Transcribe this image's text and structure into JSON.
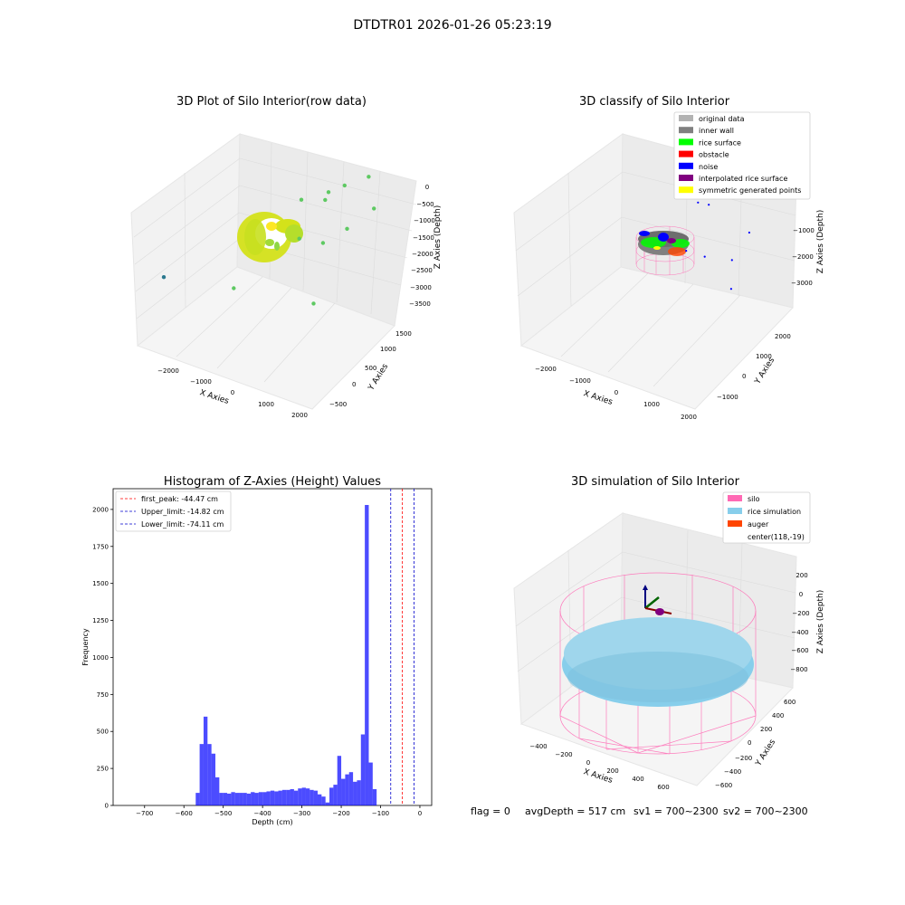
{
  "suptitle": "DTDTR01 2026-01-26 05:23:19",
  "footer": {
    "flag": "flag = 0",
    "avg": "avgDepth = 517 cm",
    "sv1": "sv1 = 700~2300",
    "sv2": "sv2 = 700~2300"
  },
  "chart_data": [
    {
      "id": "raw",
      "type": "scatter",
      "title": "3D Plot of Silo Interior(row data)",
      "xlabel": "X Axies",
      "ylabel": "Y Axies",
      "zlabel": "Z Axies (Depth)",
      "xticks": [
        "−2000",
        "−1000",
        "0",
        "1000",
        "2000"
      ],
      "yticks": [
        "−500",
        "0",
        "500",
        "1000",
        "1500"
      ],
      "zticks": [
        "0",
        "−500",
        "−1000",
        "−1500",
        "−2000",
        "−2500",
        "−3000",
        "−3500"
      ],
      "xlim": [
        -2500,
        2100
      ],
      "ylim": [
        -650,
        1700
      ],
      "zlim": [
        -3700,
        100
      ],
      "colors": {
        "dense": "#d4e21a",
        "sparse": "#5ec962",
        "outlier": "#2a788e"
      },
      "outliers": [
        {
          "x": 420,
          "y": 600,
          "z": -1100
        },
        {
          "x": 800,
          "y": 900,
          "z": -1050
        },
        {
          "x": 1000,
          "y": 1100,
          "z": -1000
        },
        {
          "x": 1300,
          "y": 1400,
          "z": -950
        },
        {
          "x": 1550,
          "y": 1300,
          "z": -1400
        },
        {
          "x": 1400,
          "y": 800,
          "z": -1500
        },
        {
          "x": 1100,
          "y": 500,
          "z": -1650
        },
        {
          "x": 700,
          "y": 300,
          "z": -1550
        },
        {
          "x": 1300,
          "y": 100,
          "z": -2450
        },
        {
          "x": -300,
          "y": -350,
          "z": -2300
        },
        {
          "x": -2200,
          "y": -300,
          "z": -2600
        },
        {
          "x": 600,
          "y": 1000,
          "z": -1300
        }
      ]
    },
    {
      "id": "classify",
      "type": "scatter",
      "title": "3D classify of Silo Interior",
      "xlabel": "X Axies",
      "ylabel": "Y Axies",
      "zlabel": "Z Axies (Depth)",
      "xticks": [
        "−2000",
        "−1000",
        "0",
        "1000",
        "2000"
      ],
      "yticks": [
        "−1000",
        "0",
        "1000",
        "2000"
      ],
      "zticks": [
        "−1000",
        "−2000",
        "−3000"
      ],
      "xlim": [
        -2500,
        2100
      ],
      "ylim": [
        -1500,
        2600
      ],
      "zlim": [
        -3400,
        -600
      ],
      "legend": [
        {
          "label": "original data",
          "color": "#b3b3b3"
        },
        {
          "label": "inner wall",
          "color": "#808080"
        },
        {
          "label": "rice surface",
          "color": "#00ff00"
        },
        {
          "label": "obstacle",
          "color": "#ff0000"
        },
        {
          "label": "noise",
          "color": "#0000ff"
        },
        {
          "label": "interpolated rice surface",
          "color": "#800080"
        },
        {
          "label": "symmetric generated points",
          "color": "#ffff00"
        }
      ],
      "legend_loc": "upper right",
      "noise": [
        {
          "x": 700,
          "y": 800,
          "z": -1500
        },
        {
          "x": 1000,
          "y": 1200,
          "z": -1400
        },
        {
          "x": 1500,
          "y": 1500,
          "z": -1450
        },
        {
          "x": 1800,
          "y": 1200,
          "z": -1800
        },
        {
          "x": 1600,
          "y": 800,
          "z": -2100
        },
        {
          "x": 1200,
          "y": 300,
          "z": -2000
        },
        {
          "x": 1900,
          "y": 300,
          "z": -2300
        },
        {
          "x": 900,
          "y": 0,
          "z": -1900
        },
        {
          "x": 600,
          "y": 1400,
          "z": -1700
        }
      ]
    },
    {
      "id": "hist",
      "type": "bar",
      "title": "Histogram of Z-Axies (Height) Values",
      "xlabel": "Depth (cm)",
      "ylabel": "Frequency",
      "bar_color": "#0000ff",
      "bar_alpha": 0.7,
      "bin_width": 10,
      "bin_starts": [
        -580,
        -570,
        -560,
        -550,
        -540,
        -530,
        -520,
        -510,
        -500,
        -490,
        -480,
        -470,
        -460,
        -450,
        -440,
        -430,
        -420,
        -410,
        -400,
        -390,
        -380,
        -370,
        -360,
        -350,
        -340,
        -330,
        -320,
        -310,
        -300,
        -290,
        -280,
        -270,
        -260,
        -250,
        -240,
        -230,
        -220,
        -210,
        -200,
        -190,
        -180,
        -170,
        -160,
        -150,
        -140,
        -130,
        -120,
        -110,
        -100,
        -90,
        -80,
        -70,
        -60,
        -50,
        -40,
        -30,
        -20,
        -10
      ],
      "values": [
        0,
        85,
        415,
        600,
        415,
        350,
        190,
        85,
        85,
        80,
        90,
        85,
        85,
        85,
        80,
        90,
        85,
        90,
        90,
        95,
        100,
        95,
        100,
        105,
        105,
        110,
        100,
        115,
        120,
        115,
        105,
        100,
        75,
        60,
        20,
        120,
        140,
        335,
        180,
        210,
        225,
        160,
        170,
        480,
        2030,
        290,
        110,
        0,
        0,
        0,
        0,
        0,
        0,
        0,
        0,
        0,
        0,
        0
      ],
      "xlim": [
        -780,
        30
      ],
      "ylim": [
        0,
        2140
      ],
      "xticks": [
        -700,
        -600,
        -500,
        -400,
        -300,
        -200,
        -100,
        0
      ],
      "xtick_labels": [
        "−700",
        "−600",
        "−500",
        "−400",
        "−300",
        "−200",
        "−100",
        "0"
      ],
      "yticks": [
        0,
        250,
        500,
        750,
        1000,
        1250,
        1500,
        1750,
        2000
      ],
      "ytick_labels": [
        "0",
        "250",
        "500",
        "750",
        "1000",
        "1250",
        "1500",
        "1750",
        "2000"
      ],
      "lines": [
        {
          "label": "first_peak: -44.47 cm",
          "x": -44.47,
          "color": "#ff0000"
        },
        {
          "label": "Upper_limit: -14.82 cm",
          "x": -14.82,
          "color": "#0000cc"
        },
        {
          "label": "Lower_limit: -74.11 cm",
          "x": -74.11,
          "color": "#0000cc"
        }
      ],
      "legend_loc": "upper left"
    },
    {
      "id": "sim",
      "type": "scatter",
      "title": "3D simulation of Silo Interior",
      "xlabel": "X Axies",
      "ylabel": "Y Axies",
      "zlabel": "Z Axies (Depth)",
      "xticks": [
        "−400",
        "−200",
        "0",
        "200",
        "400",
        "600"
      ],
      "yticks": [
        "−600",
        "−400",
        "−200",
        "0",
        "200",
        "400",
        "600"
      ],
      "zticks": [
        "200",
        "0",
        "−200",
        "−400",
        "−600",
        "−800"
      ],
      "legend": [
        {
          "label": "silo",
          "color": "#ff69b4"
        },
        {
          "label": "rice simulation",
          "color": "#87ceeb"
        },
        {
          "label": "auger",
          "color": "#ff4500"
        },
        {
          "label": "center(118,-19)",
          "color": ""
        }
      ],
      "legend_loc": "upper right"
    }
  ]
}
